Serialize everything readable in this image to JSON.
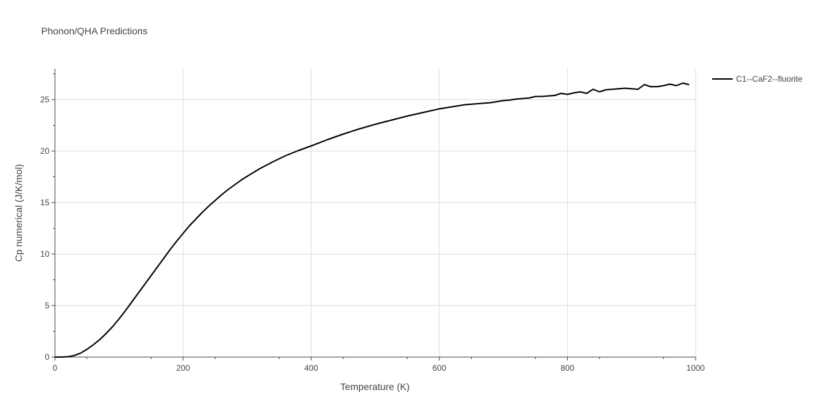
{
  "chart_data": {
    "type": "line",
    "title": "Phonon/QHA Predictions",
    "xlabel": "Temperature (K)",
    "ylabel": "Cp numerical (J/K/mol)",
    "xlim": [
      0,
      1000
    ],
    "ylim": [
      0,
      28
    ],
    "xticks": [
      0,
      200,
      400,
      600,
      800,
      1000
    ],
    "yticks": [
      0,
      5,
      10,
      15,
      20,
      25
    ],
    "xtick_labels": [
      "0",
      "200",
      "400",
      "600",
      "800",
      "1000"
    ],
    "ytick_labels": [
      "0",
      "5",
      "10",
      "15",
      "20",
      "25"
    ],
    "grid": true,
    "legend_position": "top-right",
    "series": [
      {
        "name": "C1--CaF2--fluorite",
        "color": "#000000",
        "x": [
          0,
          10,
          20,
          30,
          40,
          50,
          60,
          70,
          80,
          90,
          100,
          110,
          120,
          130,
          140,
          150,
          160,
          170,
          180,
          190,
          200,
          210,
          220,
          230,
          240,
          250,
          260,
          270,
          280,
          290,
          300,
          320,
          340,
          360,
          380,
          400,
          425,
          450,
          475,
          500,
          525,
          550,
          575,
          600,
          620,
          630,
          640,
          650,
          660,
          670,
          680,
          690,
          700,
          710,
          720,
          730,
          740,
          750,
          760,
          770,
          780,
          790,
          800,
          810,
          820,
          830,
          840,
          850,
          860,
          870,
          880,
          890,
          900,
          910,
          920,
          930,
          940,
          950,
          960,
          970,
          980,
          990
        ],
        "y": [
          0.0,
          0.0,
          0.03,
          0.15,
          0.38,
          0.75,
          1.2,
          1.7,
          2.3,
          2.95,
          3.7,
          4.5,
          5.35,
          6.2,
          7.05,
          7.9,
          8.75,
          9.6,
          10.45,
          11.25,
          12.0,
          12.75,
          13.4,
          14.05,
          14.65,
          15.2,
          15.75,
          16.25,
          16.7,
          17.15,
          17.55,
          18.3,
          18.95,
          19.55,
          20.05,
          20.5,
          21.1,
          21.65,
          22.15,
          22.6,
          23.0,
          23.4,
          23.75,
          24.1,
          24.3,
          24.4,
          24.5,
          24.55,
          24.6,
          24.65,
          24.7,
          24.8,
          24.9,
          24.95,
          25.05,
          25.1,
          25.15,
          25.3,
          25.3,
          25.35,
          25.4,
          25.6,
          25.5,
          25.65,
          25.75,
          25.6,
          26.0,
          25.75,
          25.95,
          26.0,
          26.05,
          26.1,
          26.05,
          26.0,
          26.45,
          26.25,
          26.25,
          26.35,
          26.5,
          26.35,
          26.6,
          26.45
        ]
      }
    ]
  }
}
